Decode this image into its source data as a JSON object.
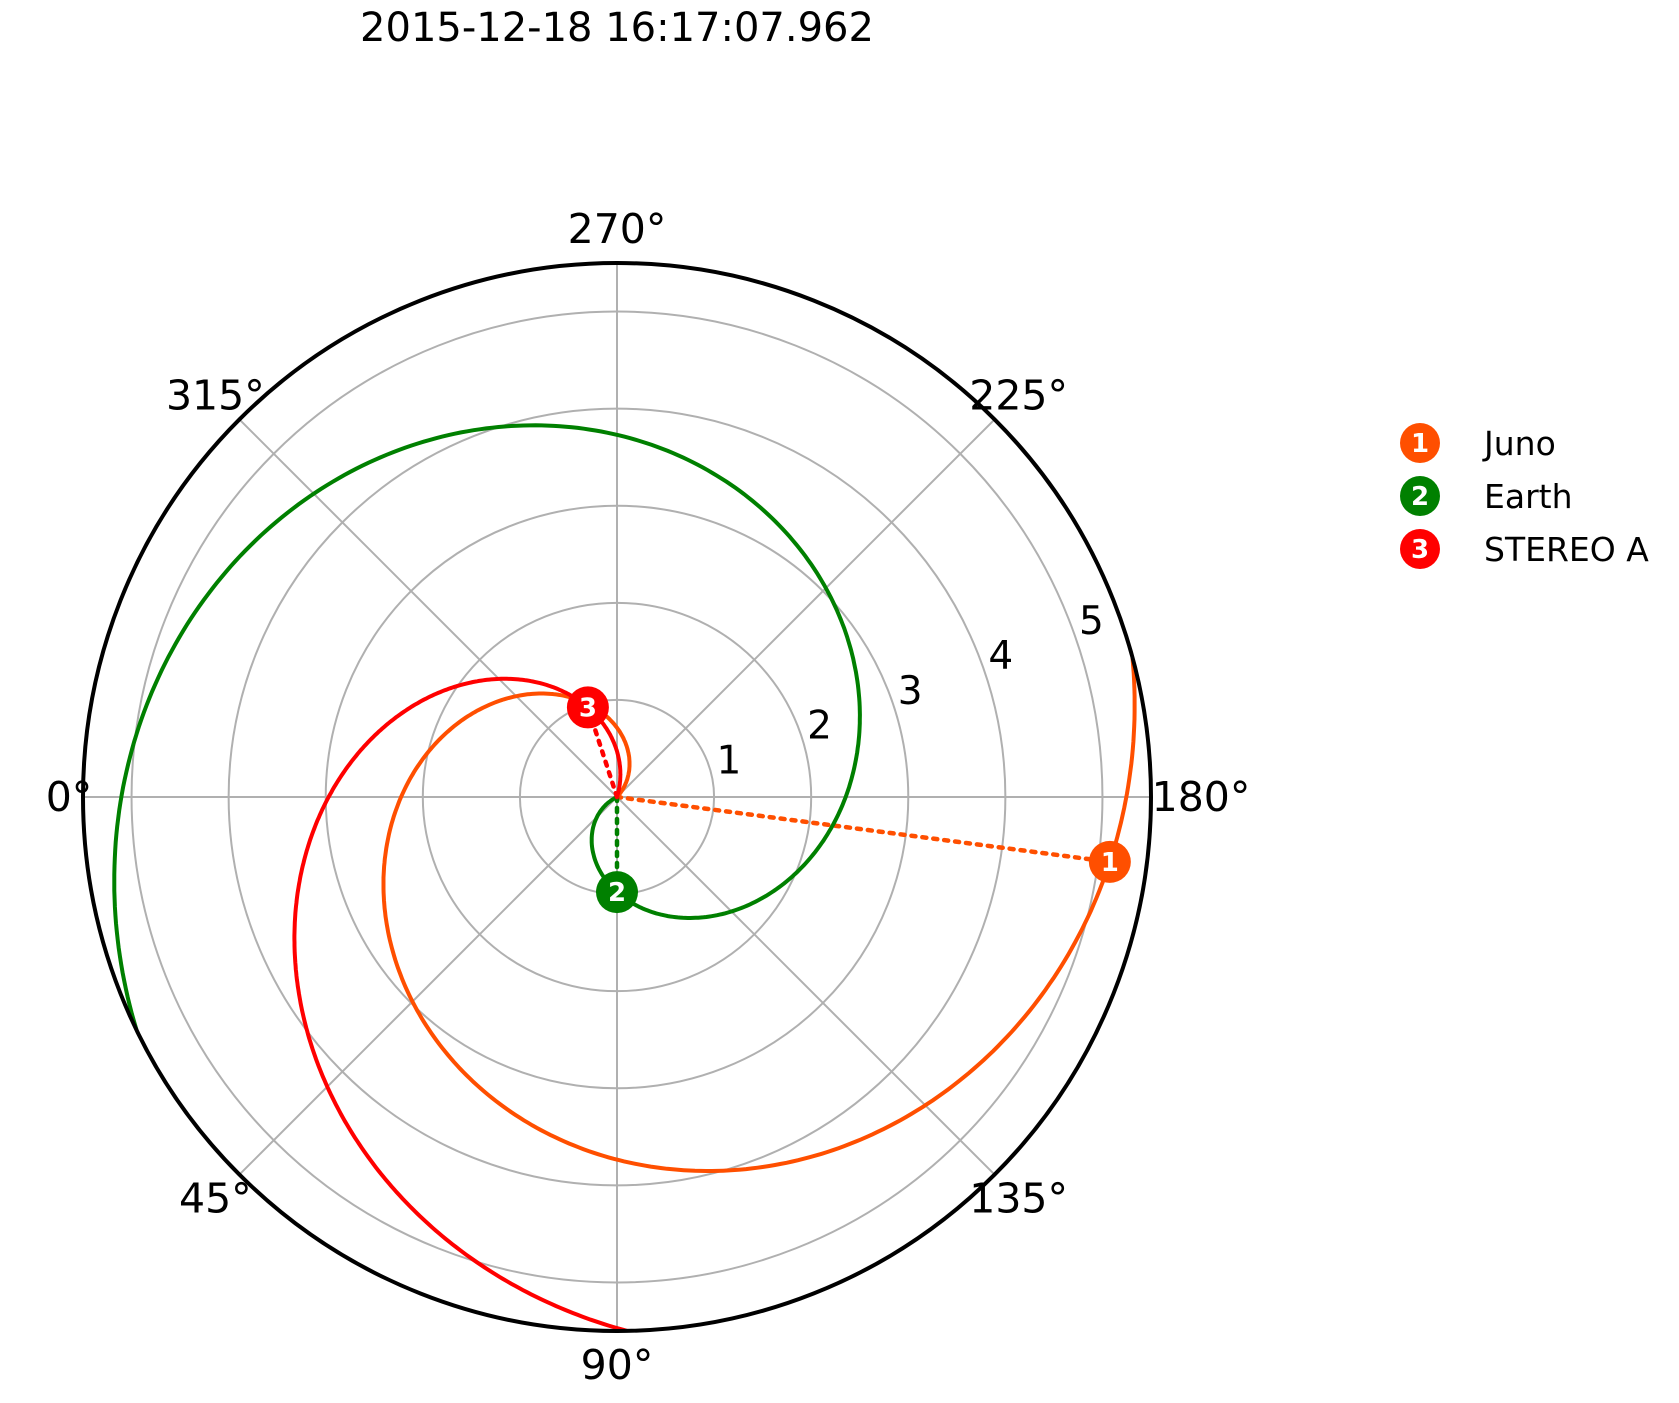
{
  "chart_data": {
    "type": "polar",
    "title": "2015-12-18 16:17:07.962",
    "rlim": [
      0,
      5.5
    ],
    "radial_ticks": [
      "1",
      "2",
      "3",
      "4",
      "5"
    ],
    "angular_ticks": [
      "0°",
      "45°",
      "90°",
      "135°",
      "180°",
      "225°",
      "270°",
      "315°"
    ],
    "angle_direction": "clockwise",
    "zero_location": "left",
    "grid": true,
    "legend_position": "right",
    "series": [
      {
        "name": "Juno",
        "marker": "1",
        "color": "#FF4F00",
        "r": 5.12,
        "theta_deg": 172.5,
        "spiral_windings": 0.91
      },
      {
        "name": "Earth",
        "marker": "2",
        "color": "#008000",
        "r": 0.98,
        "theta_deg": 90.0,
        "spiral_windings": 1.0
      },
      {
        "name": "STEREO A",
        "marker": "3",
        "color": "#FF0000",
        "r": 0.97,
        "theta_deg": 288.0,
        "spiral_windings": 0.55
      }
    ]
  }
}
